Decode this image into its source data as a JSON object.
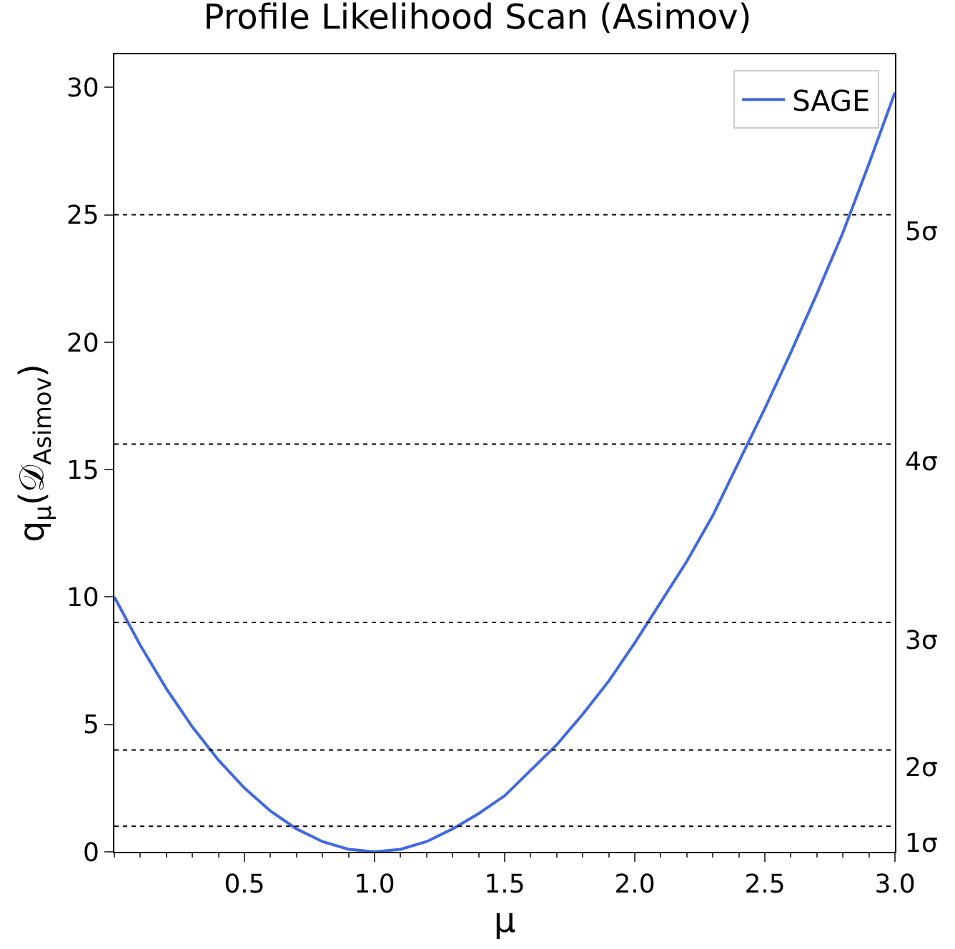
{
  "chart_data": {
    "type": "line",
    "title": "Profile Likelihood Scan (Asimov)",
    "xlabel": "μ",
    "ylabel": "q$_{μ}$(𝒟$_{Asimov}$)",
    "x": [
      0,
      0.1,
      0.2,
      0.3,
      0.4,
      0.5,
      0.6,
      0.7,
      0.8,
      0.9,
      1.0,
      1.1,
      1.2,
      1.3,
      1.4,
      1.5,
      1.6,
      1.7,
      1.8,
      1.9,
      2.0,
      2.1,
      2.2,
      2.3,
      2.4,
      2.5,
      2.6,
      2.7,
      2.8,
      2.9,
      3.0
    ],
    "series": [
      {
        "name": "SAGE",
        "color": "#4169e1",
        "values": [
          10,
          8.1,
          6.4,
          4.9,
          3.6,
          2.5,
          1.6,
          0.9,
          0.4,
          0.1,
          0,
          0.1,
          0.4,
          0.9,
          1.5,
          2.2,
          3.2,
          4.2,
          5.4,
          6.7,
          8.2,
          9.8,
          11.4,
          13.2,
          15.3,
          17.4,
          19.6,
          21.9,
          24.3,
          27.0,
          29.8
        ]
      }
    ],
    "xlim": [
      0,
      3
    ],
    "xticks": [
      0.5,
      {
        "value": 1,
        "label": "1.0"
      },
      1.5,
      {
        "value": 2,
        "label": "2.0"
      },
      2.5,
      {
        "value": 3,
        "label": "3.0"
      }
    ],
    "ylim": [
      0,
      31.3
    ],
    "yticks": [
      0,
      5,
      10,
      15,
      20,
      25,
      30
    ],
    "ref_lines": [
      {
        "axis": "y",
        "value": 1,
        "label": "1σ",
        "color": "#000000",
        "line_style": "dotted"
      },
      {
        "axis": "y",
        "value": 4,
        "label": "2σ",
        "color": "#000000",
        "line_style": "dotted"
      },
      {
        "axis": "y",
        "value": 9,
        "label": "3σ",
        "color": "#000000",
        "line_style": "dotted"
      },
      {
        "axis": "y",
        "value": 16,
        "label": "4σ",
        "color": "#000000",
        "line_style": "dotted"
      },
      {
        "axis": "y",
        "value": 25,
        "label": "5σ",
        "color": "#000000",
        "line_style": "dotted"
      }
    ],
    "grid": false,
    "legend": "top right",
    "marker": "none",
    "line_style": "solid"
  }
}
